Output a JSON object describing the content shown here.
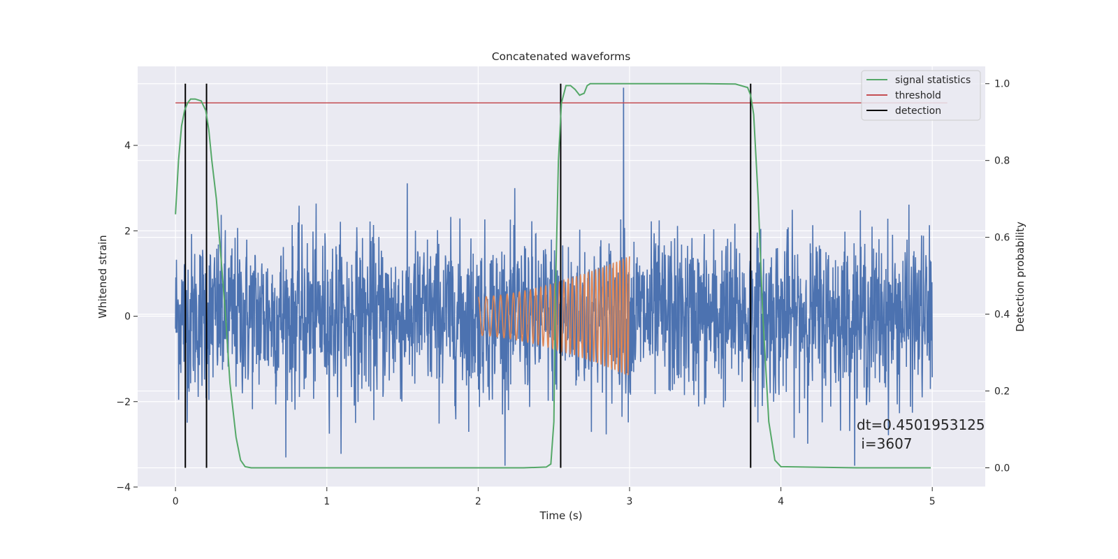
{
  "chart_data": {
    "type": "line",
    "title": "Concatenated waveforms",
    "xlabel": "Time (s)",
    "ylabel": "Whitened strain",
    "y2label": "Detection probability",
    "xlim": [
      -0.25,
      5.35
    ],
    "ylim": [
      -4.0,
      5.85
    ],
    "y2lim": [
      -0.05,
      1.045
    ],
    "x_ticks": [
      0,
      1,
      2,
      3,
      4,
      5
    ],
    "y_ticks": [
      -4,
      -2,
      0,
      2,
      4
    ],
    "y2_ticks": [
      0.0,
      0.2,
      0.4,
      0.6,
      0.8,
      1.0
    ],
    "y_tick_labels": [
      "−4",
      "−2",
      "0",
      "2",
      "4"
    ],
    "y2_tick_labels": [
      "0.0",
      "0.2",
      "0.4",
      "0.6",
      "0.8",
      "1.0"
    ],
    "grid": true,
    "legend_position": "top-right",
    "colors": {
      "strain": "#4c72b0",
      "injected": "#dd8452",
      "signal_statistics": "#55a868",
      "threshold": "#c44e52",
      "detection": "#000000",
      "background": "#eaeaf2",
      "grid": "#ffffff"
    },
    "series": [
      {
        "name": "signal statistics",
        "axis": "right",
        "x": [
          0,
          0.02,
          0.04,
          0.06,
          0.08,
          0.1,
          0.13,
          0.17,
          0.2,
          0.22,
          0.24,
          0.27,
          0.3,
          0.33,
          0.36,
          0.4,
          0.43,
          0.46,
          0.5,
          1.0,
          1.5,
          2.0,
          2.3,
          2.45,
          2.48,
          2.5,
          2.51,
          2.53,
          2.55,
          2.58,
          2.61,
          2.64,
          2.67,
          2.7,
          2.72,
          2.74,
          2.77,
          2.8,
          3.0,
          3.5,
          3.7,
          3.78,
          3.8,
          3.82,
          3.85,
          3.88,
          3.92,
          3.96,
          4.0,
          4.5,
          4.99
        ],
        "y": [
          0.66,
          0.8,
          0.89,
          0.93,
          0.95,
          0.96,
          0.96,
          0.955,
          0.93,
          0.88,
          0.8,
          0.7,
          0.55,
          0.4,
          0.22,
          0.08,
          0.02,
          0.003,
          0.0,
          0.0,
          0.0,
          0.0,
          0.0,
          0.002,
          0.01,
          0.12,
          0.45,
          0.8,
          0.95,
          0.995,
          0.995,
          0.985,
          0.97,
          0.975,
          0.995,
          1.0,
          1.0,
          1.0,
          1.0,
          1.0,
          0.999,
          0.99,
          0.97,
          0.92,
          0.7,
          0.4,
          0.12,
          0.02,
          0.003,
          0.0,
          0.0
        ]
      },
      {
        "name": "threshold",
        "axis": "right",
        "x": [
          0,
          5.1
        ],
        "y": [
          0.95,
          0.95
        ]
      },
      {
        "name": "detection",
        "axis": "right",
        "vlines": [
          0.065,
          0.205,
          2.545,
          3.8
        ],
        "y_span": [
          0.0,
          1.0
        ]
      }
    ],
    "strain": {
      "axis": "left",
      "x_range": [
        0,
        5
      ],
      "noise_amplitude": 0.95,
      "spike": {
        "x": 2.96,
        "y": 5.35
      }
    },
    "injected_chirp": {
      "axis": "left",
      "x_range": [
        2.0,
        3.0
      ],
      "amplitude_start": 0.45,
      "amplitude_end": 1.4
    },
    "legend": [
      {
        "label": "signal statistics",
        "color": "#55a868"
      },
      {
        "label": "threshold",
        "color": "#c44e52"
      },
      {
        "label": "detection",
        "color": "#000000"
      }
    ],
    "annotation": {
      "line1": "dt=0.4501953125",
      "line2": " i=3607"
    }
  }
}
